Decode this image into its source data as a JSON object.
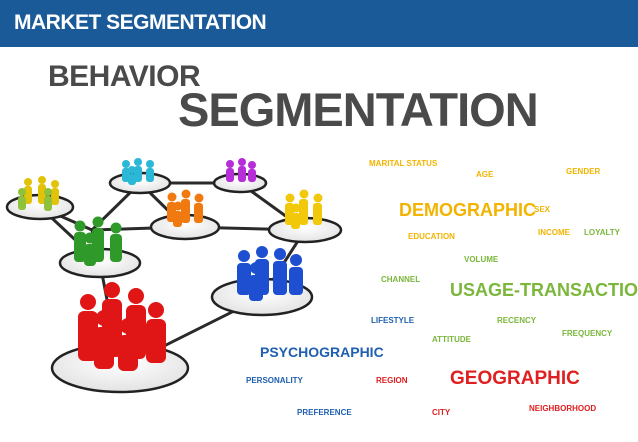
{
  "header": {
    "title": "MARKET SEGMENTATION"
  },
  "title": {
    "line1": "BEHAVIOR",
    "line2": "SEGMENTATION"
  },
  "colors": {
    "header_bg": "#1b5a98",
    "title": "#4a4a4a",
    "demographic": "#f2b400",
    "usage": "#7ab73a",
    "psychographic": "#1f5fb0",
    "geographic": "#e02020"
  },
  "word_cloud": [
    {
      "text": "MARITAL STATUS"
    },
    {
      "text": "AGE"
    },
    {
      "text": "GENDER"
    },
    {
      "text": "DEMOGRAPHIC"
    },
    {
      "text": "SEX"
    },
    {
      "text": "EDUCATION"
    },
    {
      "text": "INCOME"
    },
    {
      "text": "LOYALTY"
    },
    {
      "text": "VOLUME"
    },
    {
      "text": "CHANNEL"
    },
    {
      "text": "USAGE-TRANSACTION"
    },
    {
      "text": "LIFESTYLE"
    },
    {
      "text": "RECENCY"
    },
    {
      "text": "FREQUENCY"
    },
    {
      "text": "ATTITUDE"
    },
    {
      "text": "PSYCHOGRAPHIC"
    },
    {
      "text": "PERSONALITY"
    },
    {
      "text": "REGION"
    },
    {
      "text": "GEOGRAPHIC"
    },
    {
      "text": "PREFERENCE"
    },
    {
      "text": "CITY"
    },
    {
      "text": "NEIGHBORHOOD"
    }
  ],
  "network_groups": [
    {
      "name": "green-group",
      "color": "#f0c400"
    },
    {
      "name": "cyan-group",
      "color": "#2bb7d6"
    },
    {
      "name": "purple-group",
      "color": "#b52ed8"
    },
    {
      "name": "orange-group",
      "color": "#f07a10"
    },
    {
      "name": "yellow-group",
      "color": "#f2c80a"
    },
    {
      "name": "darkgreen-group",
      "color": "#2f9a2a"
    },
    {
      "name": "blue-group",
      "color": "#1d4fd0"
    },
    {
      "name": "red-group",
      "color": "#e01616"
    }
  ]
}
